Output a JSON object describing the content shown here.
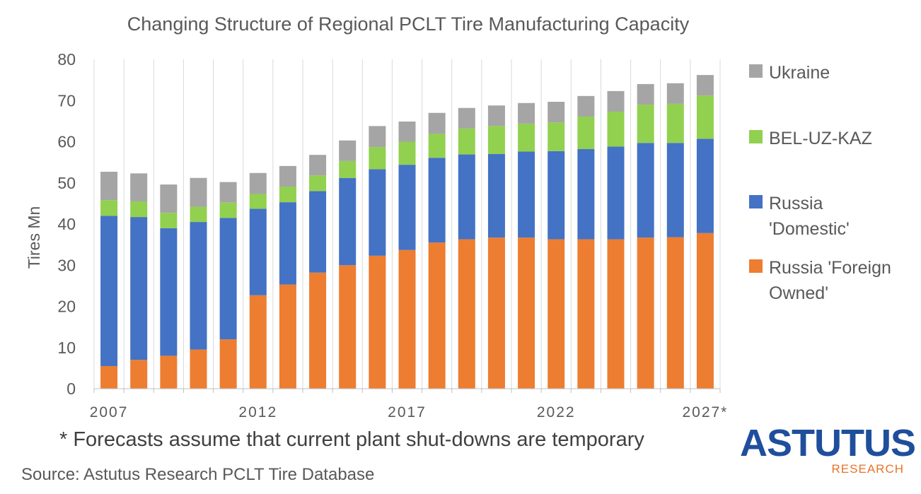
{
  "chart_data": {
    "type": "bar",
    "stacked": true,
    "title": "Changing Structure of Regional PCLT Tire Manufacturing Capacity",
    "ylabel": "Tires Mn",
    "xlabel": "",
    "ylim": [
      0,
      80
    ],
    "yticks": [
      0,
      10,
      20,
      30,
      40,
      50,
      60,
      70,
      80
    ],
    "categories": [
      "2007",
      "2008",
      "2009",
      "2010",
      "2011",
      "2012",
      "2013",
      "2014",
      "2015",
      "2016",
      "2017",
      "2018",
      "2019",
      "2020",
      "2021",
      "2022",
      "2023",
      "2024",
      "2025",
      "2026",
      "2027*"
    ],
    "xtick_labels": [
      "2007",
      "2012",
      "2017",
      "2022",
      "2027*"
    ],
    "grid": "vertical",
    "legend_position": "right",
    "series": [
      {
        "name": "Russia 'Foreign Owned'",
        "color": "#ED7D31",
        "values": [
          5.5,
          7,
          8,
          9.5,
          12,
          22.7,
          25.3,
          28.2,
          30,
          32.3,
          33.7,
          35.5,
          36.3,
          36.7,
          36.7,
          36.3,
          36.3,
          36.3,
          36.7,
          36.8,
          37.8
        ]
      },
      {
        "name": "Russia 'Domestic'",
        "color": "#4472C4",
        "values": [
          36.5,
          34.7,
          31,
          31,
          29.5,
          21,
          20,
          19.8,
          21.2,
          21,
          20.7,
          20.6,
          20.6,
          20.3,
          20.9,
          21.4,
          21.9,
          22.5,
          23,
          22.9,
          22.9
        ]
      },
      {
        "name": "BEL-UZ-KAZ",
        "color": "#92D050",
        "values": [
          3.8,
          3.8,
          3.7,
          3.7,
          3.7,
          3.6,
          3.8,
          3.8,
          4.1,
          5.4,
          5.6,
          5.8,
          6.3,
          6.8,
          6.8,
          7,
          7.9,
          8.5,
          9.3,
          9.5,
          10.5
        ]
      },
      {
        "name": "Ukraine",
        "color": "#A5A5A5",
        "values": [
          6.9,
          6.8,
          6.9,
          7,
          5,
          5.1,
          5,
          5,
          5,
          5.1,
          4.9,
          5.1,
          5,
          5,
          5,
          5,
          5,
          5,
          5,
          5,
          5
        ]
      }
    ]
  },
  "legend": [
    {
      "label": "Ukraine",
      "color": "#A5A5A5"
    },
    {
      "label": "BEL-UZ-KAZ",
      "color": "#92D050"
    },
    {
      "label": "Russia",
      "label2": "'Domestic'",
      "color": "#4472C4"
    },
    {
      "label": "Russia 'Foreign",
      "label2": "Owned'",
      "color": "#ED7D31"
    }
  ],
  "footnote": "* Forecasts assume that current plant shut-downs are temporary",
  "source": "Source: Astutus Research PCLT Tire Database",
  "logo": {
    "main": "ASTUTUS",
    "sub": "RESEARCH"
  }
}
